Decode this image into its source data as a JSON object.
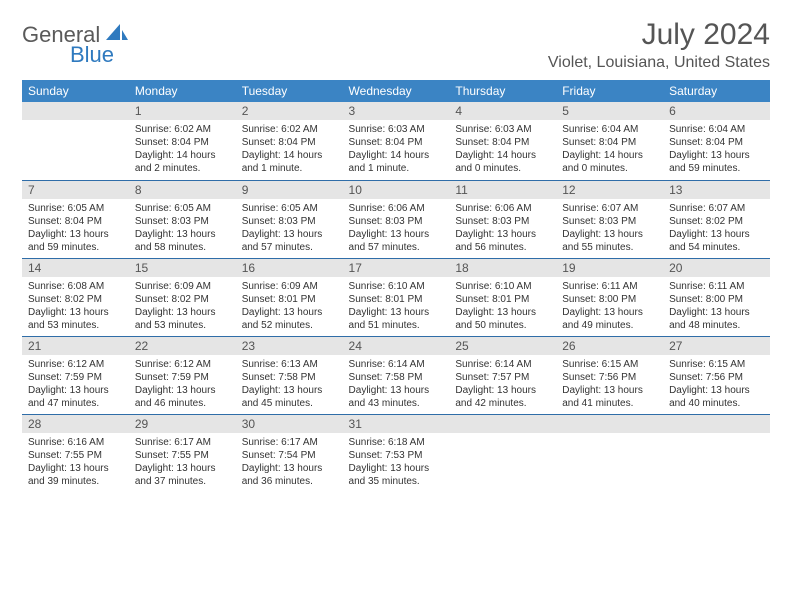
{
  "brand": {
    "general": "General",
    "blue": "Blue",
    "accent_color": "#2f7abf",
    "text_color": "#5a5a5a"
  },
  "header": {
    "month_title": "July 2024",
    "location": "Violet, Louisiana, United States"
  },
  "style": {
    "header_bg": "#3b84c4",
    "daynum_bg": "#e5e5e5",
    "row_border": "#2f6da8"
  },
  "dayNames": [
    "Sunday",
    "Monday",
    "Tuesday",
    "Wednesday",
    "Thursday",
    "Friday",
    "Saturday"
  ],
  "weeks": [
    [
      {
        "n": "",
        "sunrise": "",
        "sunset": "",
        "daylight": ""
      },
      {
        "n": "1",
        "sunrise": "Sunrise: 6:02 AM",
        "sunset": "Sunset: 8:04 PM",
        "daylight": "Daylight: 14 hours and 2 minutes."
      },
      {
        "n": "2",
        "sunrise": "Sunrise: 6:02 AM",
        "sunset": "Sunset: 8:04 PM",
        "daylight": "Daylight: 14 hours and 1 minute."
      },
      {
        "n": "3",
        "sunrise": "Sunrise: 6:03 AM",
        "sunset": "Sunset: 8:04 PM",
        "daylight": "Daylight: 14 hours and 1 minute."
      },
      {
        "n": "4",
        "sunrise": "Sunrise: 6:03 AM",
        "sunset": "Sunset: 8:04 PM",
        "daylight": "Daylight: 14 hours and 0 minutes."
      },
      {
        "n": "5",
        "sunrise": "Sunrise: 6:04 AM",
        "sunset": "Sunset: 8:04 PM",
        "daylight": "Daylight: 14 hours and 0 minutes."
      },
      {
        "n": "6",
        "sunrise": "Sunrise: 6:04 AM",
        "sunset": "Sunset: 8:04 PM",
        "daylight": "Daylight: 13 hours and 59 minutes."
      }
    ],
    [
      {
        "n": "7",
        "sunrise": "Sunrise: 6:05 AM",
        "sunset": "Sunset: 8:04 PM",
        "daylight": "Daylight: 13 hours and 59 minutes."
      },
      {
        "n": "8",
        "sunrise": "Sunrise: 6:05 AM",
        "sunset": "Sunset: 8:03 PM",
        "daylight": "Daylight: 13 hours and 58 minutes."
      },
      {
        "n": "9",
        "sunrise": "Sunrise: 6:05 AM",
        "sunset": "Sunset: 8:03 PM",
        "daylight": "Daylight: 13 hours and 57 minutes."
      },
      {
        "n": "10",
        "sunrise": "Sunrise: 6:06 AM",
        "sunset": "Sunset: 8:03 PM",
        "daylight": "Daylight: 13 hours and 57 minutes."
      },
      {
        "n": "11",
        "sunrise": "Sunrise: 6:06 AM",
        "sunset": "Sunset: 8:03 PM",
        "daylight": "Daylight: 13 hours and 56 minutes."
      },
      {
        "n": "12",
        "sunrise": "Sunrise: 6:07 AM",
        "sunset": "Sunset: 8:03 PM",
        "daylight": "Daylight: 13 hours and 55 minutes."
      },
      {
        "n": "13",
        "sunrise": "Sunrise: 6:07 AM",
        "sunset": "Sunset: 8:02 PM",
        "daylight": "Daylight: 13 hours and 54 minutes."
      }
    ],
    [
      {
        "n": "14",
        "sunrise": "Sunrise: 6:08 AM",
        "sunset": "Sunset: 8:02 PM",
        "daylight": "Daylight: 13 hours and 53 minutes."
      },
      {
        "n": "15",
        "sunrise": "Sunrise: 6:09 AM",
        "sunset": "Sunset: 8:02 PM",
        "daylight": "Daylight: 13 hours and 53 minutes."
      },
      {
        "n": "16",
        "sunrise": "Sunrise: 6:09 AM",
        "sunset": "Sunset: 8:01 PM",
        "daylight": "Daylight: 13 hours and 52 minutes."
      },
      {
        "n": "17",
        "sunrise": "Sunrise: 6:10 AM",
        "sunset": "Sunset: 8:01 PM",
        "daylight": "Daylight: 13 hours and 51 minutes."
      },
      {
        "n": "18",
        "sunrise": "Sunrise: 6:10 AM",
        "sunset": "Sunset: 8:01 PM",
        "daylight": "Daylight: 13 hours and 50 minutes."
      },
      {
        "n": "19",
        "sunrise": "Sunrise: 6:11 AM",
        "sunset": "Sunset: 8:00 PM",
        "daylight": "Daylight: 13 hours and 49 minutes."
      },
      {
        "n": "20",
        "sunrise": "Sunrise: 6:11 AM",
        "sunset": "Sunset: 8:00 PM",
        "daylight": "Daylight: 13 hours and 48 minutes."
      }
    ],
    [
      {
        "n": "21",
        "sunrise": "Sunrise: 6:12 AM",
        "sunset": "Sunset: 7:59 PM",
        "daylight": "Daylight: 13 hours and 47 minutes."
      },
      {
        "n": "22",
        "sunrise": "Sunrise: 6:12 AM",
        "sunset": "Sunset: 7:59 PM",
        "daylight": "Daylight: 13 hours and 46 minutes."
      },
      {
        "n": "23",
        "sunrise": "Sunrise: 6:13 AM",
        "sunset": "Sunset: 7:58 PM",
        "daylight": "Daylight: 13 hours and 45 minutes."
      },
      {
        "n": "24",
        "sunrise": "Sunrise: 6:14 AM",
        "sunset": "Sunset: 7:58 PM",
        "daylight": "Daylight: 13 hours and 43 minutes."
      },
      {
        "n": "25",
        "sunrise": "Sunrise: 6:14 AM",
        "sunset": "Sunset: 7:57 PM",
        "daylight": "Daylight: 13 hours and 42 minutes."
      },
      {
        "n": "26",
        "sunrise": "Sunrise: 6:15 AM",
        "sunset": "Sunset: 7:56 PM",
        "daylight": "Daylight: 13 hours and 41 minutes."
      },
      {
        "n": "27",
        "sunrise": "Sunrise: 6:15 AM",
        "sunset": "Sunset: 7:56 PM",
        "daylight": "Daylight: 13 hours and 40 minutes."
      }
    ],
    [
      {
        "n": "28",
        "sunrise": "Sunrise: 6:16 AM",
        "sunset": "Sunset: 7:55 PM",
        "daylight": "Daylight: 13 hours and 39 minutes."
      },
      {
        "n": "29",
        "sunrise": "Sunrise: 6:17 AM",
        "sunset": "Sunset: 7:55 PM",
        "daylight": "Daylight: 13 hours and 37 minutes."
      },
      {
        "n": "30",
        "sunrise": "Sunrise: 6:17 AM",
        "sunset": "Sunset: 7:54 PM",
        "daylight": "Daylight: 13 hours and 36 minutes."
      },
      {
        "n": "31",
        "sunrise": "Sunrise: 6:18 AM",
        "sunset": "Sunset: 7:53 PM",
        "daylight": "Daylight: 13 hours and 35 minutes."
      },
      {
        "n": "",
        "sunrise": "",
        "sunset": "",
        "daylight": ""
      },
      {
        "n": "",
        "sunrise": "",
        "sunset": "",
        "daylight": ""
      },
      {
        "n": "",
        "sunrise": "",
        "sunset": "",
        "daylight": ""
      }
    ]
  ]
}
